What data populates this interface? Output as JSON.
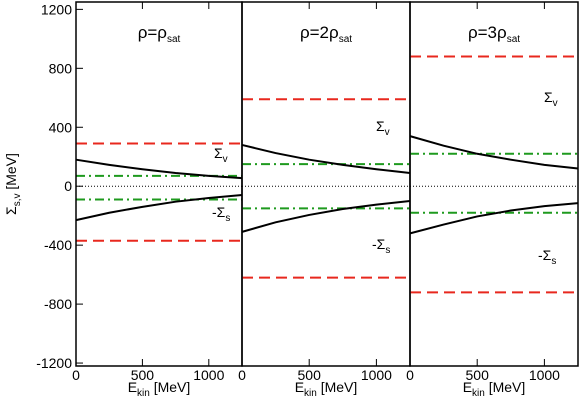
{
  "chart_data": [
    {
      "type": "line",
      "title": "ρ=ρ",
      "title_sub": "sat",
      "ylabel": "Σ",
      "ylabel_sub": "s,v",
      "ylabel_unit": " [MeV]",
      "xlabel": "E",
      "xlabel_sub": "kin",
      "xlabel_unit": " [MeV]",
      "xlim": [
        0,
        1250
      ],
      "xticks": [
        0,
        500,
        1000
      ],
      "ylim": [
        -1220,
        1250
      ],
      "yticks": [
        -1200,
        -800,
        -400,
        0,
        400,
        800,
        1200
      ],
      "annotations": [
        {
          "text": "Σ",
          "sub": "v"
        },
        {
          "text": "-Σ",
          "sub": "s"
        }
      ],
      "x": [
        0,
        250,
        500,
        750,
        1000,
        1250
      ],
      "series": [
        {
          "color": "#e8281e",
          "style": "dashed",
          "values": [
            290,
            290,
            290,
            290,
            290,
            290
          ]
        },
        {
          "color": "#e8281e",
          "style": "dashed",
          "values": [
            -370,
            -370,
            -370,
            -370,
            -370,
            -370
          ]
        },
        {
          "color": "#1e9a1e",
          "style": "dashdot",
          "values": [
            70,
            70,
            70,
            70,
            70,
            70
          ]
        },
        {
          "color": "#1e9a1e",
          "style": "dashdot",
          "values": [
            -90,
            -90,
            -90,
            -90,
            -90,
            -90
          ]
        },
        {
          "color": "#000000",
          "style": "solid",
          "values": [
            180,
            145,
            115,
            90,
            70,
            55
          ]
        },
        {
          "color": "#000000",
          "style": "solid",
          "values": [
            -230,
            -180,
            -140,
            -105,
            -80,
            -60
          ]
        }
      ]
    },
    {
      "type": "line",
      "title": "ρ=2ρ",
      "title_sub": "sat",
      "xlabel": "E",
      "xlabel_sub": "kin",
      "xlabel_unit": " [MeV]",
      "xlim": [
        0,
        1250
      ],
      "xticks": [
        0,
        500,
        1000
      ],
      "ylim": [
        -1220,
        1250
      ],
      "annotations": [
        {
          "text": "Σ",
          "sub": "v"
        },
        {
          "text": "-Σ",
          "sub": "s"
        }
      ],
      "x": [
        0,
        250,
        500,
        750,
        1000,
        1250
      ],
      "series": [
        {
          "color": "#e8281e",
          "style": "dashed",
          "values": [
            590,
            590,
            590,
            590,
            590,
            590
          ]
        },
        {
          "color": "#e8281e",
          "style": "dashed",
          "values": [
            -620,
            -620,
            -620,
            -620,
            -620,
            -620
          ]
        },
        {
          "color": "#1e9a1e",
          "style": "dashdot",
          "values": [
            150,
            150,
            150,
            150,
            150,
            150
          ]
        },
        {
          "color": "#1e9a1e",
          "style": "dashdot",
          "values": [
            -150,
            -150,
            -150,
            -150,
            -150,
            -150
          ]
        },
        {
          "color": "#000000",
          "style": "solid",
          "values": [
            280,
            225,
            180,
            145,
            115,
            90
          ]
        },
        {
          "color": "#000000",
          "style": "solid",
          "values": [
            -310,
            -245,
            -195,
            -155,
            -125,
            -100
          ]
        }
      ]
    },
    {
      "type": "line",
      "title": "ρ=3ρ",
      "title_sub": "sat",
      "xlabel": "E",
      "xlabel_sub": "kin",
      "xlabel_unit": " [MeV]",
      "xlim": [
        0,
        1250
      ],
      "xticks": [
        0,
        500,
        1000
      ],
      "ylim": [
        -1220,
        1250
      ],
      "annotations": [
        {
          "text": "Σ",
          "sub": "v"
        },
        {
          "text": "-Σ",
          "sub": "s"
        }
      ],
      "x": [
        0,
        250,
        500,
        750,
        1000,
        1250
      ],
      "series": [
        {
          "color": "#e8281e",
          "style": "dashed",
          "values": [
            880,
            880,
            880,
            880,
            880,
            880
          ]
        },
        {
          "color": "#e8281e",
          "style": "dashed",
          "values": [
            -720,
            -720,
            -720,
            -720,
            -720,
            -720
          ]
        },
        {
          "color": "#1e9a1e",
          "style": "dashdot",
          "values": [
            220,
            220,
            220,
            220,
            220,
            220
          ]
        },
        {
          "color": "#1e9a1e",
          "style": "dashdot",
          "values": [
            -180,
            -180,
            -180,
            -180,
            -180,
            -180
          ]
        },
        {
          "color": "#000000",
          "style": "solid",
          "values": [
            340,
            275,
            220,
            180,
            145,
            120
          ]
        },
        {
          "color": "#000000",
          "style": "solid",
          "values": [
            -320,
            -260,
            -205,
            -165,
            -135,
            -115
          ]
        }
      ]
    }
  ]
}
